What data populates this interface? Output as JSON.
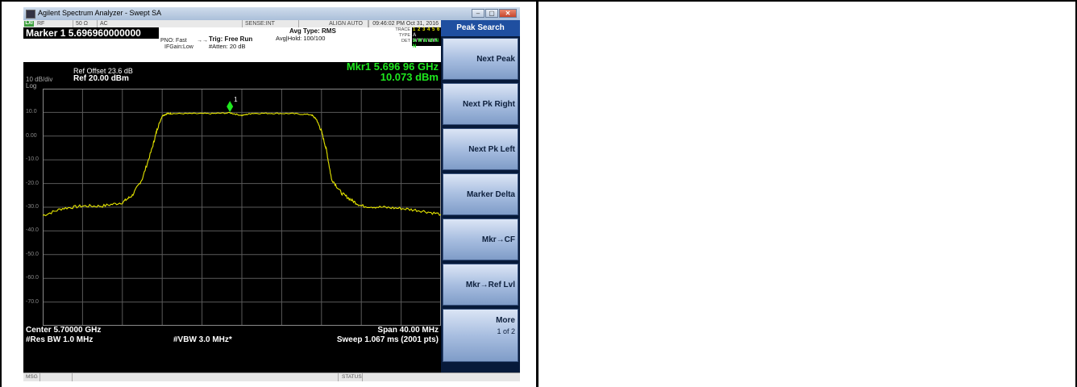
{
  "window": {
    "title": "Agilent Spectrum Analyzer - Swept SA"
  },
  "statusbar": {
    "lxi": "LXI",
    "rf": "RF",
    "impedance": "50 Ω",
    "coupling": "AC",
    "sense": "SENSE:INT",
    "align": "ALIGN AUTO",
    "clock": "09:46:02 PM Oct 31, 2016"
  },
  "marker": {
    "title": "Marker 1  5.696960000000 GHz",
    "readout_freq": "Mkr1 5.696 96 GHz",
    "readout_amp": "10.073 dBm",
    "label": "1"
  },
  "settings": {
    "pno": "PNO: Fast",
    "ifgain": "IFGain:Low",
    "trig": "Trig: Free Run",
    "atten": "#Atten: 20 dB",
    "avgtype": "Avg Type: RMS",
    "avghold": "Avg|Hold: 100/100"
  },
  "trace": {
    "trace_label": "TRACE",
    "type_label": "TYPE",
    "det_label": "DET",
    "trace_row": "1 2 3 4 5 6",
    "type_row": "A WWWWW",
    "det_row": "A N N N N N"
  },
  "display": {
    "ref_offset": "Ref Offset 23.6 dB",
    "ref_level": "Ref 20.00 dBm",
    "scale": "10 dB/div",
    "scale_type": "Log",
    "y_ticks": [
      "10.0",
      "0.00",
      "-10.0",
      "-20.0",
      "-30.0",
      "-40.0",
      "-50.0",
      "-60.0",
      "-70.0"
    ]
  },
  "footer": {
    "center": "Center 5.70000 GHz",
    "res_bw": "#Res BW 1.0 MHz",
    "vbw": "#VBW 3.0 MHz*",
    "span": "Span 40.00 MHz",
    "sweep": "Sweep  1.067 ms (2001 pts)"
  },
  "softkeys": {
    "title": "Peak Search",
    "keys": [
      "Next Peak",
      "Next Pk Right",
      "Next Pk Left",
      "Marker Delta",
      "Mkr→CF",
      "Mkr→Ref Lvl"
    ],
    "more": "More",
    "more_sub": "1 of 2"
  },
  "msgbar": {
    "msg": "MSG",
    "status": "STATUS"
  },
  "chart_data": {
    "type": "line",
    "y_unit": "dBm",
    "ylim": [
      -80,
      20
    ],
    "xlim_MHz": [
      -20,
      20
    ],
    "series": [
      {
        "x": [
          -20,
          -18,
          -16,
          -14,
          -12,
          -11,
          -10,
          -9,
          -8.5,
          -8,
          -7.5,
          -7,
          -5,
          -3,
          -1.2,
          0,
          1,
          3,
          5,
          7,
          7.5,
          8,
          8.5,
          9,
          10,
          11,
          12,
          14,
          16,
          18,
          20
        ],
        "values": [
          -33.5,
          -30.5,
          -29.5,
          -29.5,
          -28,
          -25,
          -18,
          -5,
          3,
          8.5,
          9.5,
          9.5,
          9.5,
          9.5,
          9.8,
          8.7,
          9.6,
          9.6,
          9.5,
          9,
          7,
          2,
          -6,
          -18,
          -24,
          -27,
          -29.5,
          -30,
          -30.5,
          -31.5,
          -33
        ]
      }
    ],
    "marker": {
      "x": -1.2,
      "y": 10.073
    },
    "grid": true
  }
}
